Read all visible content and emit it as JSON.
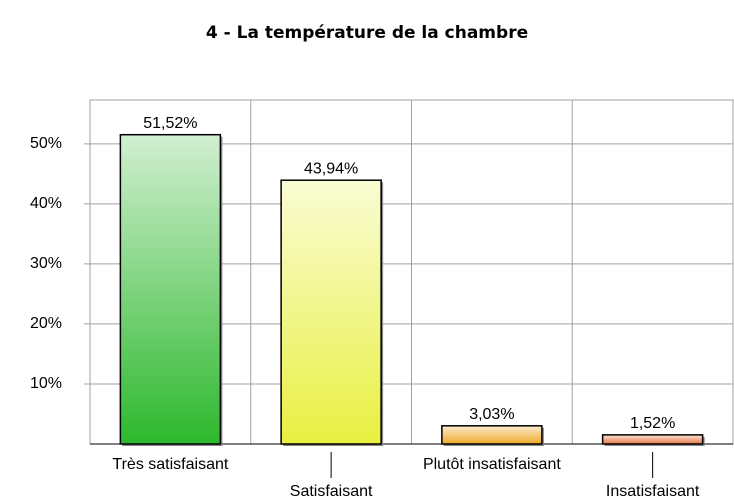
{
  "chart_data": {
    "type": "bar",
    "title": "4 - La température de la chambre",
    "categories": [
      "Très satisfaisant",
      "Satisfaisant",
      "Plutôt insatisfaisant",
      "Insatisfaisant"
    ],
    "values": [
      51.52,
      43.94,
      3.03,
      1.52
    ],
    "value_labels": [
      "51,52%",
      "43,94%",
      "3,03%",
      "1,52%"
    ],
    "colors": [
      "#2db82d",
      "#e8f040",
      "#f0a828",
      "#e87848"
    ],
    "ylim": [
      0,
      57.3
    ],
    "yticks": [
      {
        "value": 10,
        "label": "10%"
      },
      {
        "value": 20,
        "label": "20%"
      },
      {
        "value": 30,
        "label": "30%"
      },
      {
        "value": 40,
        "label": "40%"
      },
      {
        "value": 50,
        "label": "50%"
      }
    ],
    "grid": true
  }
}
